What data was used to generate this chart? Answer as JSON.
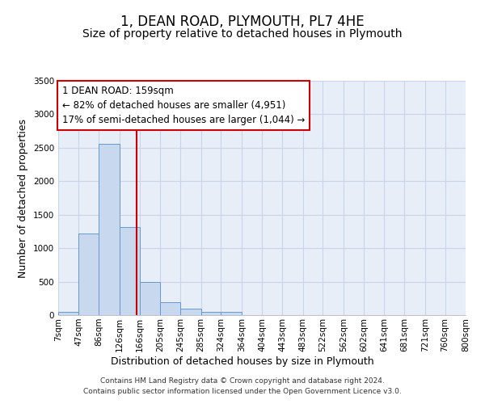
{
  "title": "1, DEAN ROAD, PLYMOUTH, PL7 4HE",
  "subtitle": "Size of property relative to detached houses in Plymouth",
  "xlabel": "Distribution of detached houses by size in Plymouth",
  "ylabel": "Number of detached properties",
  "footer_line1": "Contains HM Land Registry data © Crown copyright and database right 2024.",
  "footer_line2": "Contains public sector information licensed under the Open Government Licence v3.0.",
  "annotation_line1": "1 DEAN ROAD: 159sqm",
  "annotation_line2": "← 82% of detached houses are smaller (4,951)",
  "annotation_line3": "17% of semi-detached houses are larger (1,044) →",
  "property_size": 159,
  "bin_edges": [
    7,
    47,
    86,
    126,
    166,
    205,
    245,
    285,
    324,
    364,
    404,
    443,
    483,
    522,
    562,
    602,
    641,
    681,
    721,
    760,
    800
  ],
  "bar_heights": [
    50,
    1220,
    2560,
    1320,
    500,
    190,
    100,
    50,
    50,
    0,
    0,
    0,
    0,
    0,
    0,
    0,
    0,
    0,
    0,
    0
  ],
  "bar_color": "#c8d8ee",
  "bar_edge_color": "#6699cc",
  "vline_color": "#cc0000",
  "annotation_box_color": "#cc0000",
  "grid_color": "#c8d4e8",
  "bg_color": "#e8eef8",
  "ylim": [
    0,
    3500
  ],
  "yticks": [
    0,
    500,
    1000,
    1500,
    2000,
    2500,
    3000,
    3500
  ],
  "title_fontsize": 12,
  "subtitle_fontsize": 10,
  "axis_label_fontsize": 9,
  "tick_fontsize": 7.5,
  "annotation_fontsize": 8.5,
  "footer_fontsize": 6.5
}
